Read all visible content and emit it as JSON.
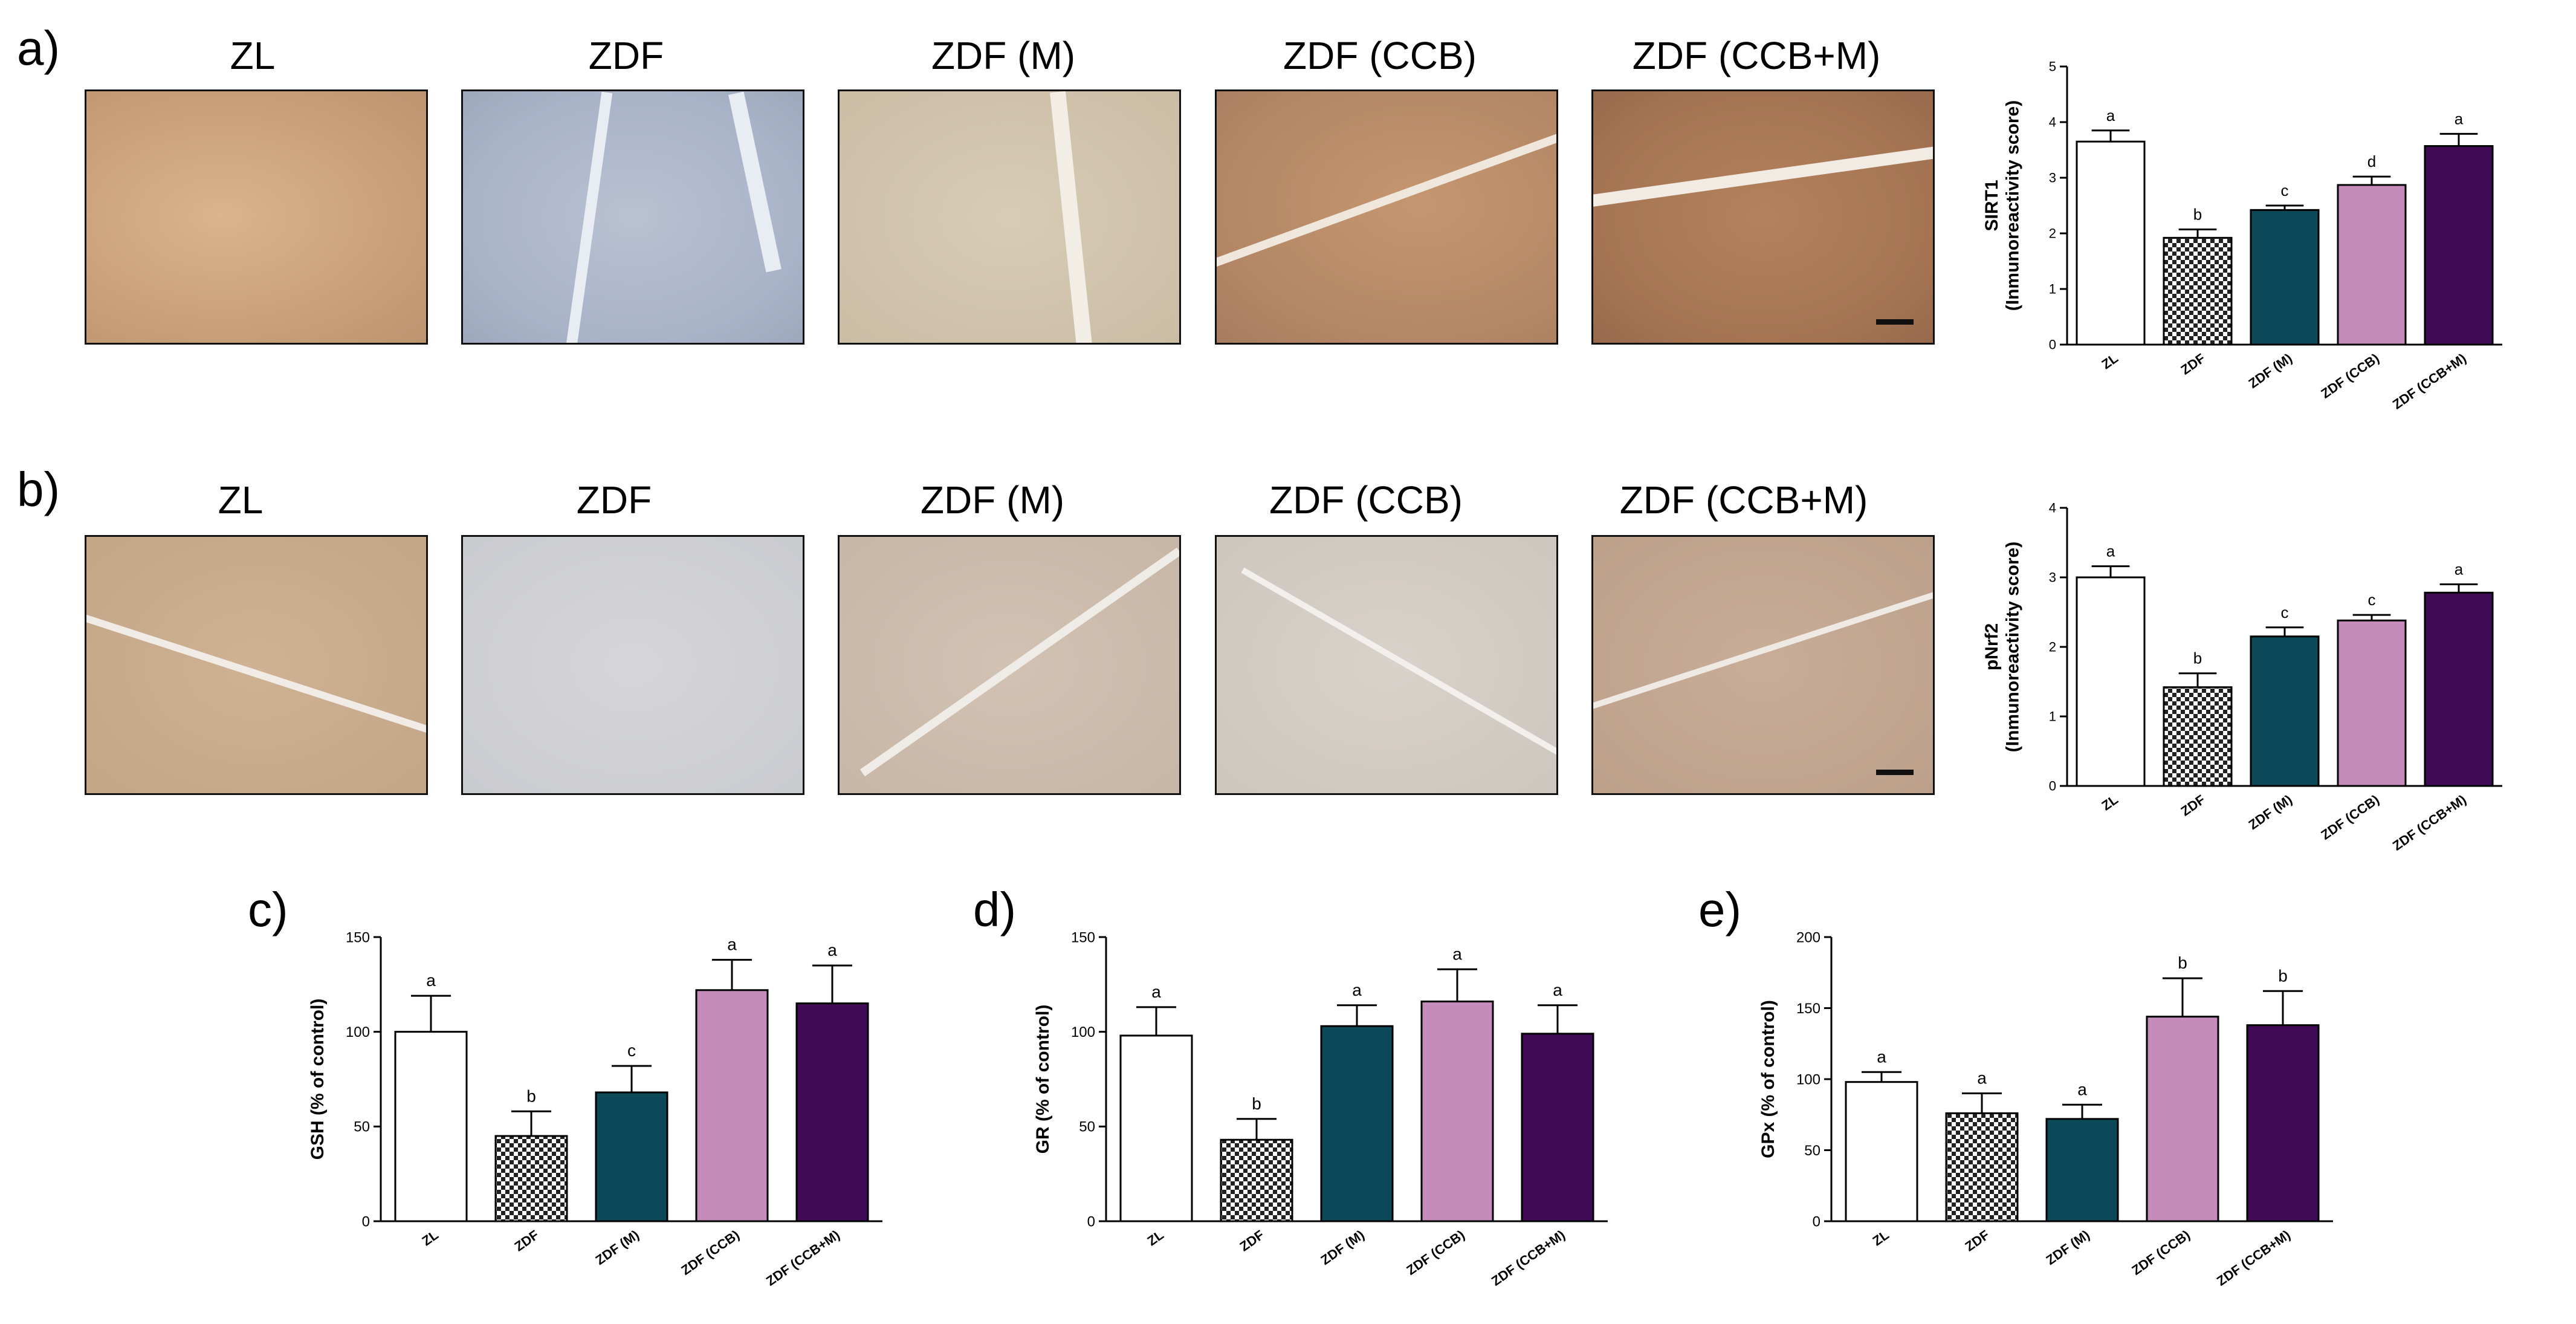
{
  "colors": {
    "ZL": "#ffffff",
    "ZDF": "checkered",
    "ZDF (M)": "#0c4a5a",
    "ZDF (CCB)": "#c48bbb",
    "ZDF (CCB+M)": "#420b56"
  },
  "panels": {
    "a": {
      "letter": "a)",
      "labels": [
        "ZL",
        "ZDF",
        "ZDF (M)",
        "ZDF (CCB)",
        "ZDF (CCB+M)"
      ]
    },
    "b": {
      "letter": "b)",
      "labels": [
        "ZL",
        "ZDF",
        "ZDF (M)",
        "ZDF (CCB)",
        "ZDF (CCB+M)"
      ]
    },
    "c": {
      "letter": "c)"
    },
    "d": {
      "letter": "d)"
    },
    "e": {
      "letter": "e)"
    }
  },
  "micrographs": {
    "a": [
      "brown-stained myocardium",
      "blue-stained myocardium",
      "light brown myocardium",
      "brown-stained myocardium with vessel clefts",
      "strongly brown-stained myocardium"
    ],
    "b": [
      "brown-stained myocardium",
      "pale myocardium",
      "light brown myocardium",
      "pale myocardium",
      "brown-stained myocardium"
    ]
  },
  "chart_data": [
    {
      "id": "a",
      "type": "bar",
      "categories": [
        "ZL",
        "ZDF",
        "ZDF (M)",
        "ZDF (CCB)",
        "ZDF (CCB+M)"
      ],
      "values": [
        3.65,
        1.92,
        2.42,
        2.87,
        3.57
      ],
      "errors": [
        0.2,
        0.15,
        0.08,
        0.15,
        0.22
      ],
      "sig": [
        "a",
        "b",
        "c",
        "d",
        "a"
      ],
      "ylabel_lines": [
        "SIRT1",
        "(Inmunoreactivity score)"
      ],
      "ylim": [
        0,
        5
      ],
      "yticks": [
        0,
        1,
        2,
        3,
        4,
        5
      ]
    },
    {
      "id": "b",
      "type": "bar",
      "categories": [
        "ZL",
        "ZDF",
        "ZDF (M)",
        "ZDF (CCB)",
        "ZDF (CCB+M)"
      ],
      "values": [
        3.0,
        1.42,
        2.15,
        2.38,
        2.78
      ],
      "errors": [
        0.16,
        0.2,
        0.13,
        0.08,
        0.12
      ],
      "sig": [
        "a",
        "b",
        "c",
        "c",
        "a"
      ],
      "ylabel_lines": [
        "pNrf2",
        "(Inmunoreactivity score)"
      ],
      "ylim": [
        0,
        4
      ],
      "yticks": [
        0,
        1,
        2,
        3,
        4
      ]
    },
    {
      "id": "c",
      "type": "bar",
      "categories": [
        "ZL",
        "ZDF",
        "ZDF (M)",
        "ZDF (CCB)",
        "ZDF (CCB+M)"
      ],
      "values": [
        100,
        45,
        68,
        122,
        115
      ],
      "errors": [
        19,
        13,
        14,
        16,
        20
      ],
      "sig": [
        "a",
        "b",
        "c",
        "a",
        "a"
      ],
      "ylabel_lines": [
        "GSH (% of control)"
      ],
      "ylim": [
        0,
        150
      ],
      "yticks": [
        0,
        50,
        100,
        150
      ]
    },
    {
      "id": "d",
      "type": "bar",
      "categories": [
        "ZL",
        "ZDF",
        "ZDF (M)",
        "ZDF (CCB)",
        "ZDF (CCB+M)"
      ],
      "values": [
        98,
        43,
        103,
        116,
        99
      ],
      "errors": [
        15,
        11,
        11,
        17,
        15
      ],
      "sig": [
        "a",
        "b",
        "a",
        "a",
        "a"
      ],
      "ylabel_lines": [
        "GR (% of control)"
      ],
      "ylim": [
        0,
        150
      ],
      "yticks": [
        0,
        50,
        100,
        150
      ]
    },
    {
      "id": "e",
      "type": "bar",
      "categories": [
        "ZL",
        "ZDF",
        "ZDF (M)",
        "ZDF (CCB)",
        "ZDF (CCB+M)"
      ],
      "values": [
        98,
        76,
        72,
        144,
        138
      ],
      "errors": [
        7,
        14,
        10,
        27,
        24
      ],
      "sig": [
        "a",
        "a",
        "a",
        "b",
        "b"
      ],
      "ylabel_lines": [
        "GPx (% of control)"
      ],
      "ylim": [
        0,
        200
      ],
      "yticks": [
        0,
        50,
        100,
        150,
        200
      ]
    }
  ]
}
